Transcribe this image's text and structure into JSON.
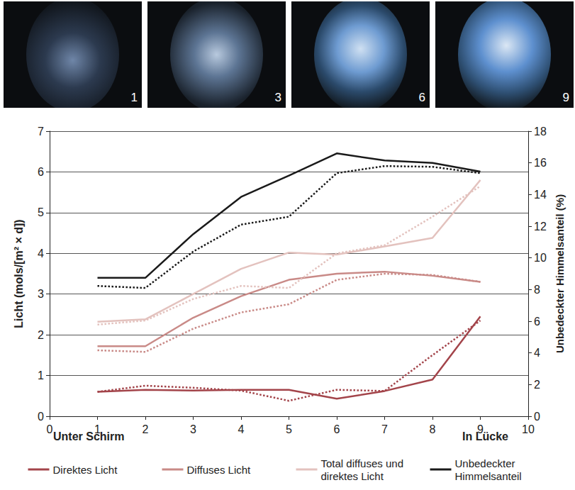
{
  "photos": [
    {
      "label": "1"
    },
    {
      "label": "3"
    },
    {
      "label": "6"
    },
    {
      "label": "9"
    }
  ],
  "chart_data": {
    "type": "line",
    "x": [
      1,
      2,
      3,
      4,
      5,
      6,
      7,
      8,
      9
    ],
    "xlim": [
      0,
      10
    ],
    "xticks": [
      0,
      1,
      2,
      3,
      4,
      5,
      6,
      7,
      8,
      9,
      10
    ],
    "ylabel": "Licht (mols/[m² × d])",
    "ylim": [
      0,
      7
    ],
    "yticks": [
      0,
      1,
      2,
      3,
      4,
      5,
      6,
      7
    ],
    "y2label": "Unbedeckter Himmelsanteil (%)",
    "y2lim": [
      0,
      18
    ],
    "y2ticks": [
      0,
      2,
      4,
      6,
      8,
      10,
      12,
      14,
      16,
      18
    ],
    "grid": true,
    "legend": "bottom",
    "annotations": [
      {
        "text": "Unter Schirm"
      },
      {
        "text": "In Lücke"
      }
    ],
    "series": [
      {
        "name": "Direktes Licht",
        "color": "#a3444a",
        "line_style": "solid",
        "values": [
          0.6,
          0.65,
          0.63,
          0.65,
          0.65,
          0.43,
          0.62,
          0.9,
          2.45
        ]
      },
      {
        "name": "Direktes Licht",
        "color": "#a3444a",
        "line_style": "dotted",
        "values": [
          0.6,
          0.75,
          0.7,
          0.63,
          0.38,
          0.65,
          0.62,
          1.5,
          2.35
        ]
      },
      {
        "name": "Diffuses Licht",
        "color": "#c98a87",
        "line_style": "solid",
        "values": [
          1.72,
          1.72,
          2.42,
          2.95,
          3.35,
          3.5,
          3.55,
          3.45,
          3.3
        ]
      },
      {
        "name": "Diffuses Licht",
        "color": "#c98a87",
        "line_style": "dotted",
        "values": [
          1.62,
          1.58,
          2.15,
          2.55,
          2.75,
          3.35,
          3.5,
          3.47,
          3.3
        ]
      },
      {
        "name": "Total diffuses und direktes Licht",
        "color": "#e3c2be",
        "line_style": "solid",
        "values": [
          2.32,
          2.38,
          3.0,
          3.62,
          4.02,
          3.97,
          4.17,
          4.38,
          5.8
        ]
      },
      {
        "name": "Total diffuses und direktes Licht",
        "color": "#e3c2be",
        "line_style": "dotted",
        "values": [
          2.25,
          2.35,
          2.88,
          3.2,
          3.15,
          4.0,
          4.2,
          4.9,
          5.65
        ]
      },
      {
        "name": "Unbedeckter Himmelsanteil",
        "color": "#1a1a1a",
        "line_style": "solid",
        "axis": "y2",
        "values": [
          8.74,
          8.74,
          11.5,
          13.85,
          15.2,
          16.6,
          16.15,
          16.0,
          15.45
        ]
      },
      {
        "name": "Unbedeckter Himmelsanteil",
        "color": "#1a1a1a",
        "line_style": "dotted",
        "axis": "y2",
        "values": [
          8.23,
          8.1,
          10.4,
          12.1,
          12.6,
          15.35,
          15.8,
          15.75,
          15.35
        ]
      }
    ]
  }
}
